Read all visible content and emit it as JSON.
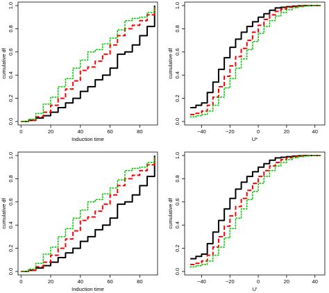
{
  "chart_data": [
    {
      "type": "line",
      "title": "",
      "xlabel": "Induction time",
      "ylabel": "cumulative df",
      "xlim": [
        -2,
        92
      ],
      "ylim": [
        -0.03,
        1.03
      ],
      "xticks": [
        0,
        20,
        40,
        60,
        80
      ],
      "xtick_labels": [
        "0",
        "20",
        "40",
        "60",
        "80"
      ],
      "yticks": [
        0,
        0.2,
        0.4,
        0.6,
        0.8,
        1.0
      ],
      "ytick_labels": [
        "0.0",
        "0.2",
        "0.4",
        "0.6",
        "0.8",
        "1.0"
      ],
      "grid": false,
      "series": [
        {
          "color": "#000000",
          "style": "solid",
          "x": [
            0,
            5,
            10,
            15,
            20,
            25,
            30,
            35,
            40,
            45,
            50,
            55,
            60,
            65,
            70,
            75,
            80,
            85,
            90
          ],
          "y": [
            0.0,
            0.01,
            0.03,
            0.05,
            0.08,
            0.12,
            0.16,
            0.2,
            0.26,
            0.3,
            0.36,
            0.4,
            0.46,
            0.58,
            0.6,
            0.66,
            0.74,
            0.82,
            1.0
          ]
        },
        {
          "color": "#ff0000",
          "style": "dashed",
          "x": [
            0,
            5,
            10,
            15,
            20,
            25,
            30,
            35,
            40,
            45,
            50,
            55,
            60,
            65,
            70,
            75,
            80,
            85,
            90
          ],
          "y": [
            0.0,
            0.01,
            0.04,
            0.08,
            0.14,
            0.2,
            0.28,
            0.35,
            0.44,
            0.47,
            0.52,
            0.58,
            0.66,
            0.74,
            0.8,
            0.83,
            0.87,
            0.92,
            0.98
          ]
        },
        {
          "color": "#00cc00",
          "style": "dotted",
          "x": [
            0,
            5,
            10,
            15,
            20,
            25,
            30,
            35,
            40,
            45,
            50,
            55,
            60,
            65,
            70,
            75,
            80,
            85,
            90
          ],
          "y": [
            0.0,
            0.02,
            0.07,
            0.15,
            0.21,
            0.3,
            0.37,
            0.46,
            0.53,
            0.6,
            0.62,
            0.67,
            0.72,
            0.79,
            0.87,
            0.89,
            0.9,
            0.94,
            0.98
          ]
        }
      ]
    },
    {
      "type": "line",
      "title": "",
      "xlabel": "U*",
      "ylabel": "cumulative df",
      "xlim": [
        -52,
        47
      ],
      "ylim": [
        -0.03,
        1.03
      ],
      "xticks": [
        -40,
        -20,
        0,
        20,
        40
      ],
      "xtick_labels": [
        "−40",
        "−20",
        "0",
        "20",
        "40"
      ],
      "yticks": [
        0,
        0.2,
        0.4,
        0.6,
        0.8,
        1.0
      ],
      "ytick_labels": [
        "0.0",
        "0.2",
        "0.4",
        "0.6",
        "0.8",
        "1.0"
      ],
      "grid": false,
      "series": [
        {
          "color": "#000000",
          "style": "solid",
          "x": [
            -48,
            -44,
            -40,
            -36,
            -32,
            -28,
            -24,
            -20,
            -16,
            -12,
            -8,
            -4,
            0,
            4,
            8,
            12,
            16,
            20,
            24,
            28,
            32,
            36,
            40,
            44
          ],
          "y": [
            0.12,
            0.14,
            0.16,
            0.25,
            0.34,
            0.45,
            0.55,
            0.64,
            0.71,
            0.77,
            0.82,
            0.86,
            0.9,
            0.93,
            0.96,
            0.98,
            0.985,
            0.99,
            0.995,
            0.998,
            1.0,
            1.0,
            1.0,
            1.0
          ]
        },
        {
          "color": "#ff0000",
          "style": "dashed",
          "x": [
            -48,
            -44,
            -40,
            -36,
            -32,
            -28,
            -24,
            -20,
            -16,
            -12,
            -8,
            -4,
            0,
            4,
            8,
            12,
            16,
            20,
            24,
            28,
            32,
            36,
            40,
            44
          ],
          "y": [
            0.06,
            0.07,
            0.09,
            0.14,
            0.21,
            0.3,
            0.39,
            0.48,
            0.56,
            0.63,
            0.7,
            0.77,
            0.83,
            0.88,
            0.92,
            0.95,
            0.97,
            0.985,
            0.99,
            0.995,
            1.0,
            1.0,
            1.0,
            1.0
          ]
        },
        {
          "color": "#00cc00",
          "style": "dotted",
          "x": [
            -48,
            -44,
            -40,
            -36,
            -32,
            -28,
            -24,
            -20,
            -16,
            -12,
            -8,
            -4,
            0,
            4,
            8,
            12,
            16,
            20,
            24,
            28,
            32,
            36,
            40,
            44
          ],
          "y": [
            0.04,
            0.05,
            0.06,
            0.09,
            0.14,
            0.21,
            0.29,
            0.37,
            0.46,
            0.54,
            0.62,
            0.69,
            0.76,
            0.82,
            0.87,
            0.91,
            0.94,
            0.965,
            0.98,
            0.99,
            0.995,
            1.0,
            1.0,
            1.0
          ]
        }
      ]
    },
    {
      "type": "line",
      "title": "",
      "xlabel": "Induction time",
      "ylabel": "cumulative df",
      "xlim": [
        -2,
        92
      ],
      "ylim": [
        -0.03,
        1.03
      ],
      "xticks": [
        0,
        20,
        40,
        60,
        80
      ],
      "xtick_labels": [
        "0",
        "20",
        "40",
        "60",
        "80"
      ],
      "yticks": [
        0,
        0.2,
        0.4,
        0.6,
        0.8,
        1.0
      ],
      "ytick_labels": [
        "0.0",
        "0.2",
        "0.4",
        "0.6",
        "0.8",
        "1.0"
      ],
      "grid": false,
      "series": [
        {
          "color": "#000000",
          "style": "solid",
          "x": [
            0,
            5,
            10,
            15,
            20,
            25,
            30,
            35,
            40,
            45,
            50,
            55,
            60,
            65,
            70,
            75,
            80,
            85,
            90
          ],
          "y": [
            0.0,
            0.01,
            0.03,
            0.05,
            0.08,
            0.12,
            0.16,
            0.2,
            0.26,
            0.3,
            0.36,
            0.4,
            0.46,
            0.58,
            0.6,
            0.66,
            0.74,
            0.82,
            1.0
          ]
        },
        {
          "color": "#ff0000",
          "style": "dashed",
          "x": [
            0,
            5,
            10,
            15,
            20,
            25,
            30,
            35,
            40,
            45,
            50,
            55,
            60,
            65,
            70,
            75,
            80,
            85,
            90
          ],
          "y": [
            0.0,
            0.01,
            0.04,
            0.08,
            0.14,
            0.2,
            0.28,
            0.35,
            0.44,
            0.47,
            0.52,
            0.58,
            0.66,
            0.74,
            0.8,
            0.83,
            0.87,
            0.92,
            0.98
          ]
        },
        {
          "color": "#00cc00",
          "style": "dotted",
          "x": [
            0,
            5,
            10,
            15,
            20,
            25,
            30,
            35,
            40,
            45,
            50,
            55,
            60,
            65,
            70,
            75,
            80,
            85,
            90
          ],
          "y": [
            0.0,
            0.02,
            0.07,
            0.15,
            0.21,
            0.3,
            0.37,
            0.46,
            0.53,
            0.6,
            0.62,
            0.67,
            0.72,
            0.79,
            0.87,
            0.89,
            0.9,
            0.94,
            0.98
          ]
        }
      ]
    },
    {
      "type": "line",
      "title": "",
      "xlabel": "U'",
      "ylabel": "cumulative df",
      "xlim": [
        -52,
        47
      ],
      "ylim": [
        -0.03,
        1.03
      ],
      "xticks": [
        -40,
        -20,
        0,
        20,
        40
      ],
      "xtick_labels": [
        "−40",
        "−20",
        "0",
        "20",
        "40"
      ],
      "yticks": [
        0,
        0.2,
        0.4,
        0.6,
        0.8,
        1.0
      ],
      "ytick_labels": [
        "0.0",
        "0.2",
        "0.4",
        "0.6",
        "0.8",
        "1.0"
      ],
      "grid": false,
      "series": [
        {
          "color": "#000000",
          "style": "solid",
          "x": [
            -48,
            -44,
            -40,
            -36,
            -32,
            -28,
            -24,
            -20,
            -16,
            -12,
            -8,
            -4,
            0,
            4,
            8,
            12,
            16,
            20,
            24,
            28,
            32,
            36,
            40,
            44
          ],
          "y": [
            0.11,
            0.13,
            0.15,
            0.24,
            0.34,
            0.44,
            0.54,
            0.63,
            0.71,
            0.77,
            0.82,
            0.86,
            0.9,
            0.93,
            0.96,
            0.98,
            0.985,
            0.99,
            0.995,
            0.998,
            1.0,
            1.0,
            1.0,
            1.0
          ]
        },
        {
          "color": "#ff0000",
          "style": "dashed",
          "x": [
            -48,
            -44,
            -40,
            -36,
            -32,
            -28,
            -24,
            -20,
            -16,
            -12,
            -8,
            -4,
            0,
            4,
            8,
            12,
            16,
            20,
            24,
            28,
            32,
            36,
            40,
            44
          ],
          "y": [
            0.06,
            0.07,
            0.09,
            0.14,
            0.21,
            0.3,
            0.39,
            0.48,
            0.56,
            0.63,
            0.7,
            0.76,
            0.82,
            0.87,
            0.91,
            0.94,
            0.965,
            0.98,
            0.99,
            0.995,
            1.0,
            1.0,
            1.0,
            1.0
          ]
        },
        {
          "color": "#00cc00",
          "style": "dotted",
          "x": [
            -48,
            -44,
            -40,
            -36,
            -32,
            -28,
            -24,
            -20,
            -16,
            -12,
            -8,
            -4,
            0,
            4,
            8,
            12,
            16,
            20,
            24,
            28,
            32,
            36,
            40,
            44
          ],
          "y": [
            0.04,
            0.05,
            0.06,
            0.09,
            0.14,
            0.21,
            0.29,
            0.37,
            0.46,
            0.54,
            0.62,
            0.69,
            0.76,
            0.82,
            0.87,
            0.91,
            0.94,
            0.965,
            0.98,
            0.99,
            0.995,
            1.0,
            1.0,
            1.0
          ]
        }
      ]
    }
  ]
}
